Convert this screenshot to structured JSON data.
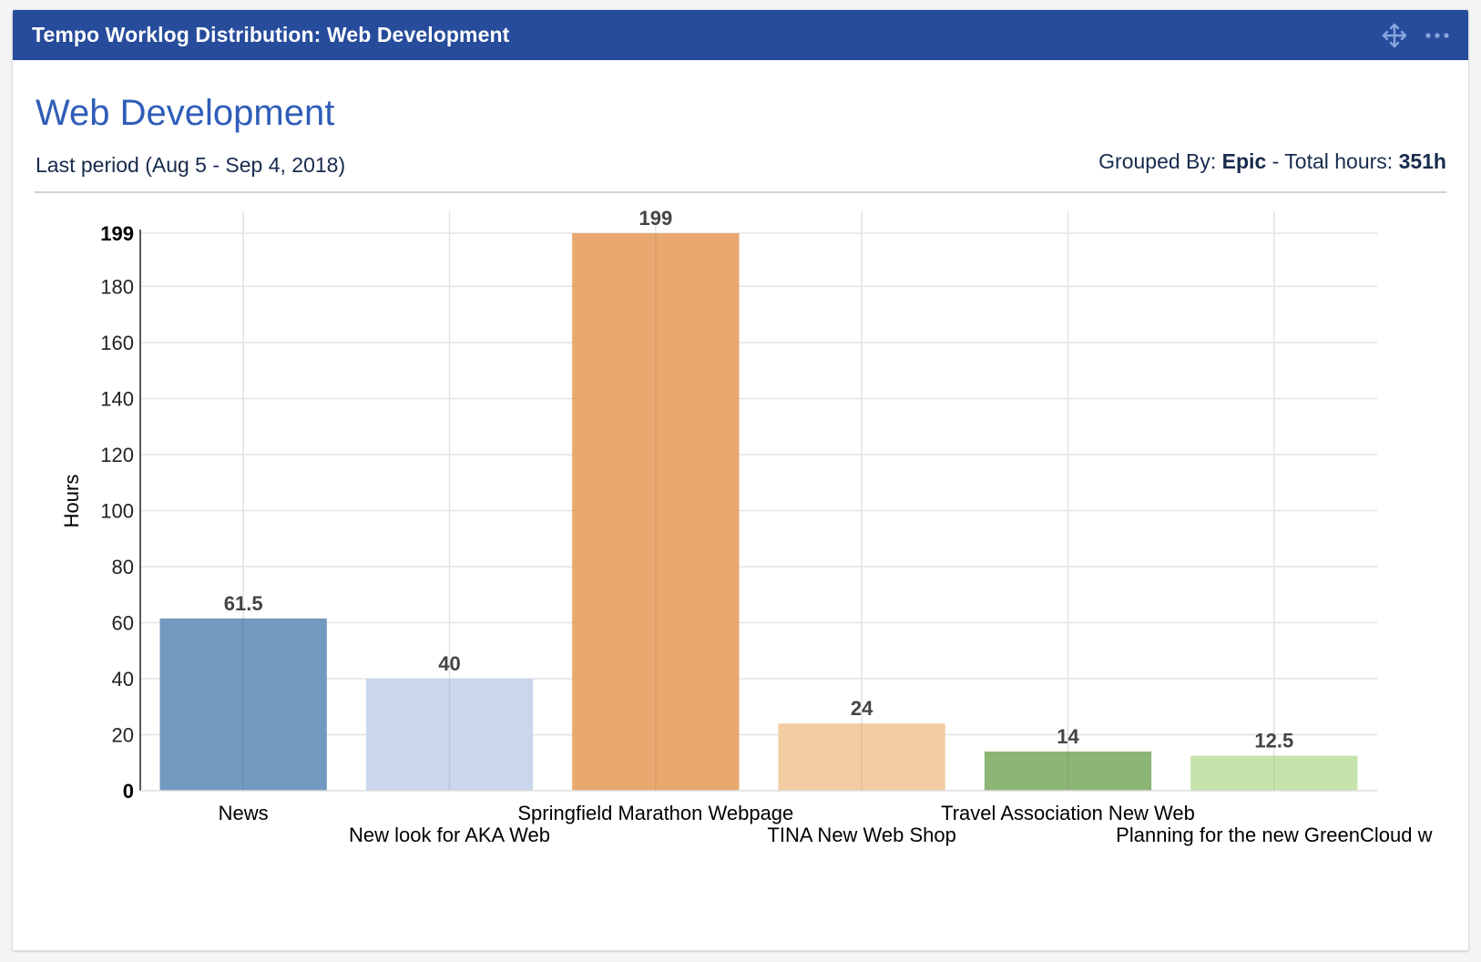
{
  "gadget": {
    "title": "Tempo Worklog Distribution: Web Development"
  },
  "report": {
    "title": "Web Development",
    "period": "Last period (Aug 5 - Sep 4, 2018)",
    "grouped_prefix": "Grouped By: ",
    "grouped_value": "Epic",
    "total_prefix": " - Total hours: ",
    "total_value": "351h"
  },
  "icons": {
    "move": "move-icon",
    "more": "more-icon"
  },
  "chart_data": {
    "type": "bar",
    "title": "Web Development",
    "xlabel": "",
    "ylabel": "Hours",
    "ylim": [
      0,
      199
    ],
    "yticks": [
      0,
      20,
      40,
      60,
      80,
      100,
      120,
      140,
      160,
      180,
      199
    ],
    "categories": [
      "News",
      "New look for AKA Web",
      "Springfield Marathon Webpage",
      "TINA New Web Shop",
      "Travel Association New Web",
      "Planning for the new GreenCloud w"
    ],
    "values": [
      61.5,
      40,
      199,
      24,
      14,
      12.5
    ],
    "value_labels": [
      "61.5",
      "40",
      "199",
      "24",
      "14",
      "12.5"
    ],
    "colors": [
      "#7399c0",
      "#c9d6ec",
      "#e8a870",
      "#f2cda2",
      "#8db576",
      "#c6e3ad"
    ],
    "grid": true
  }
}
